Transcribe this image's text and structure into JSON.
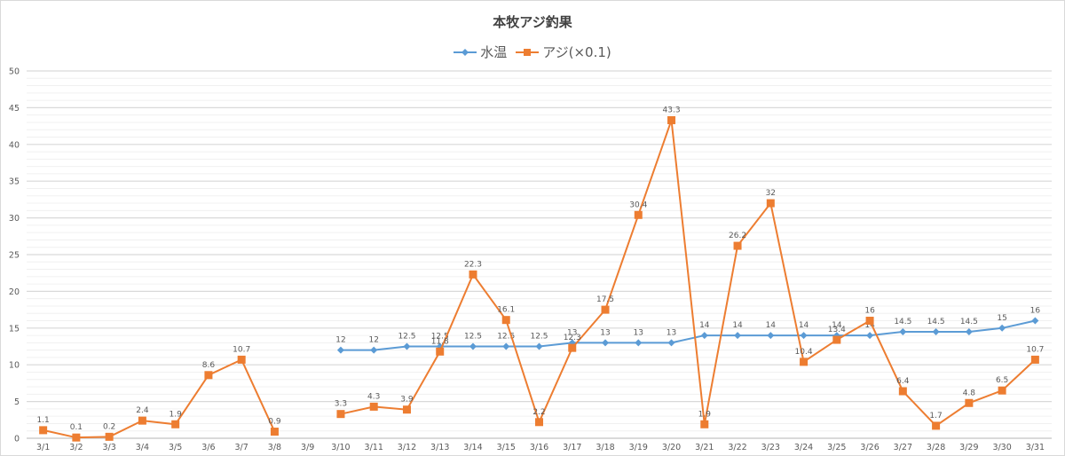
{
  "chart_data": {
    "type": "line",
    "title": "本牧アジ釣果",
    "xlabel": "",
    "ylabel": "",
    "ylim": [
      0,
      50
    ],
    "yticks": [
      0,
      5,
      10,
      15,
      20,
      25,
      30,
      35,
      40,
      45,
      50
    ],
    "grid": {
      "major_step": 5,
      "minor_step": 1
    },
    "legend_position": "top",
    "categories": [
      "3/1",
      "3/2",
      "3/3",
      "3/4",
      "3/5",
      "3/6",
      "3/7",
      "3/8",
      "3/9",
      "3/10",
      "3/11",
      "3/12",
      "3/13",
      "3/14",
      "3/15",
      "3/16",
      "3/17",
      "3/18",
      "3/19",
      "3/20",
      "3/21",
      "3/22",
      "3/23",
      "3/24",
      "3/25",
      "3/26",
      "3/27",
      "3/28",
      "3/29",
      "3/30",
      "3/31"
    ],
    "series": [
      {
        "name": "水温",
        "color": "#5b9bd5",
        "marker": "diamond",
        "values": [
          null,
          null,
          null,
          null,
          null,
          null,
          null,
          null,
          null,
          12,
          12,
          12.5,
          12.5,
          12.5,
          12.5,
          12.5,
          13,
          13,
          13,
          13,
          14,
          14,
          14,
          14,
          14,
          14,
          14.5,
          14.5,
          14.5,
          15,
          16
        ]
      },
      {
        "name": "アジ(×0.1)",
        "color": "#ed7d31",
        "marker": "square",
        "values": [
          1.1,
          0.1,
          0.2,
          2.4,
          1.9,
          8.6,
          10.7,
          0.9,
          null,
          3.3,
          4.3,
          3.9,
          11.8,
          22.3,
          16.1,
          2.2,
          12.3,
          17.5,
          30.4,
          43.3,
          1.9,
          26.2,
          32,
          10.4,
          13.4,
          16,
          6.4,
          1.7,
          4.8,
          6.5,
          10.7
        ]
      }
    ]
  },
  "legend": {
    "items": [
      {
        "label": "水温",
        "color": "#5b9bd5",
        "icon": "diamond-marker-icon"
      },
      {
        "label": "アジ(×0.1)",
        "color": "#ed7d31",
        "icon": "square-marker-icon"
      }
    ]
  }
}
